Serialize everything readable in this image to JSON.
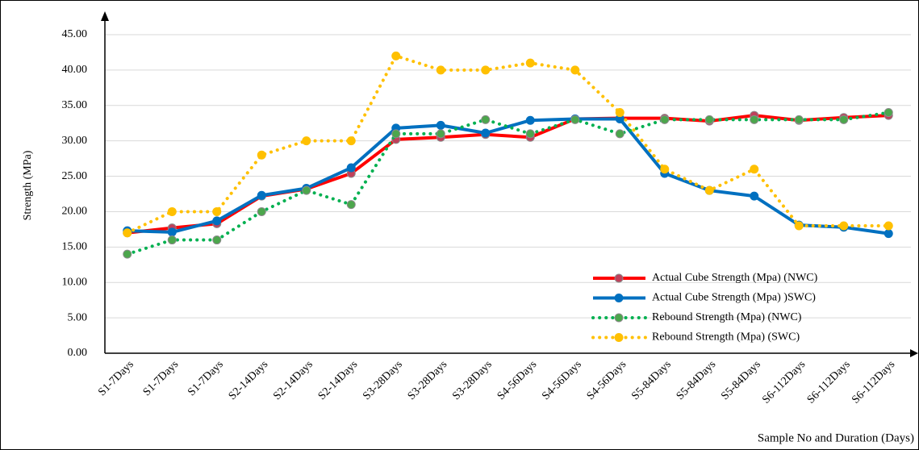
{
  "chart_data": {
    "type": "line",
    "x_label": "Sample No and Duration (Days)",
    "y_label": "Strength (MPa)",
    "categories": [
      "S1-7Days",
      "S1-7Days",
      "S1-7Days",
      "S2-14Days",
      "S2-14Days",
      "S2-14Days",
      "S3-28Days",
      "S3-28Days",
      "S3-28Days",
      "S4-56Days",
      "S4-56Days",
      "S4-56Days",
      "S5-84Days",
      "S5-84Days",
      "S5-84Days",
      "S6-112Days",
      "S6-112Days",
      "S6-112Days"
    ],
    "series": [
      {
        "name": "Actual Cube Strength (Mpa) (NWC)",
        "color": "#ff0000",
        "marker_color": "#c0405a",
        "style": "solid",
        "values": [
          17,
          17.7,
          18.3,
          22.2,
          23.2,
          25.4,
          30.2,
          30.5,
          30.9,
          30.5,
          33.1,
          33.2,
          33.2,
          32.8,
          33.6,
          32.9,
          33.3,
          33.6
        ]
      },
      {
        "name": "Actual Cube Strength (Mpa) )SWC)",
        "color": "#0070c0",
        "marker_color": "#0070c0",
        "style": "solid",
        "values": [
          17.3,
          17.1,
          18.7,
          22.3,
          23.3,
          26.2,
          31.8,
          32.2,
          31.1,
          32.9,
          33.1,
          33.1,
          25.4,
          23.0,
          22.2,
          18.1,
          17.8,
          16.9
        ]
      },
      {
        "name": "Rebound Strength (Mpa) (NWC)",
        "color": "#00b050",
        "marker_color": "#4ca64c",
        "style": "dotted",
        "values": [
          14,
          16,
          16,
          20,
          23,
          21,
          31,
          31,
          33,
          31,
          33,
          31,
          33,
          33,
          33,
          33,
          33,
          34
        ]
      },
      {
        "name": "Rebound Strength (Mpa)  (SWC)",
        "color": "#ffc000",
        "marker_color": "#ffc000",
        "style": "dotted",
        "values": [
          17,
          20,
          20,
          28,
          30,
          30,
          42,
          40,
          40,
          41,
          40,
          34,
          26,
          23,
          26,
          18,
          18,
          18
        ]
      }
    ],
    "ylim": [
      0,
      45
    ],
    "yticks": [
      {
        "value": 0,
        "label": "0.00"
      },
      {
        "value": 5,
        "label": "5.00"
      },
      {
        "value": 10,
        "label": "10.00"
      },
      {
        "value": 15,
        "label": "15.00"
      },
      {
        "value": 20,
        "label": "20.00"
      },
      {
        "value": 25,
        "label": "25.00"
      },
      {
        "value": 30,
        "label": "30.00"
      },
      {
        "value": 35,
        "label": "35.00"
      },
      {
        "value": 40,
        "label": "40.00"
      },
      {
        "value": 45,
        "label": "45.00"
      }
    ],
    "grid": true,
    "legend": "lower right"
  }
}
